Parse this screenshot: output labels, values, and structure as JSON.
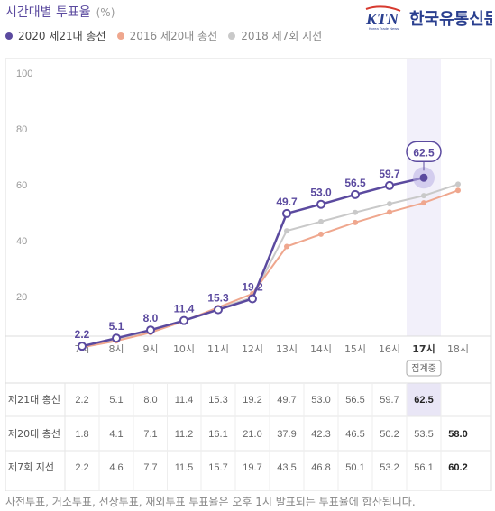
{
  "header": {
    "title": "시간대별 투표율",
    "unit": "(%)",
    "logo_short": "KTN",
    "logo_name": "한국유통신문",
    "logo_sub": "Korea Trade News"
  },
  "footnote": "사전투표, 거소투표, 선상투표, 재외투표 투표율은 오후 1시 발표되는 투표율에 합산됩니다.",
  "current_time_badge": "집계중",
  "colors": {
    "purple": "#5b4a9f",
    "salmon": "#efa78e",
    "gray": "#c9c9c9",
    "highlight": "#e9e6f6"
  },
  "chart_data": {
    "type": "line",
    "title": "시간대별 투표율",
    "ylabel": "(%)",
    "ylim": [
      0,
      100
    ],
    "y_ticks": [
      20,
      40,
      60,
      80,
      100
    ],
    "categories": [
      "7시",
      "8시",
      "9시",
      "10시",
      "11시",
      "12시",
      "13시",
      "14시",
      "15시",
      "16시",
      "17시",
      "18시"
    ],
    "highlight_category": "17시",
    "grid": false,
    "legend_position": "top-left",
    "series": [
      {
        "name": "2020 제21대 총선",
        "table_label": "제21대 총선",
        "color": "#5b4a9f",
        "values": [
          2.2,
          5.1,
          8.0,
          11.4,
          15.3,
          19.2,
          49.7,
          53.0,
          56.5,
          59.7,
          62.5,
          null
        ]
      },
      {
        "name": "2016 제20대 총선",
        "table_label": "제20대 총선",
        "color": "#efa78e",
        "values": [
          1.8,
          4.1,
          7.1,
          11.2,
          16.1,
          21.0,
          37.9,
          42.3,
          46.5,
          50.2,
          53.5,
          58.0
        ]
      },
      {
        "name": "2018 제7회 지선",
        "table_label": "제7회 지선",
        "color": "#c9c9c9",
        "values": [
          2.2,
          4.6,
          7.7,
          11.5,
          15.7,
          19.7,
          43.5,
          46.8,
          50.1,
          53.2,
          56.1,
          60.2
        ]
      }
    ]
  }
}
